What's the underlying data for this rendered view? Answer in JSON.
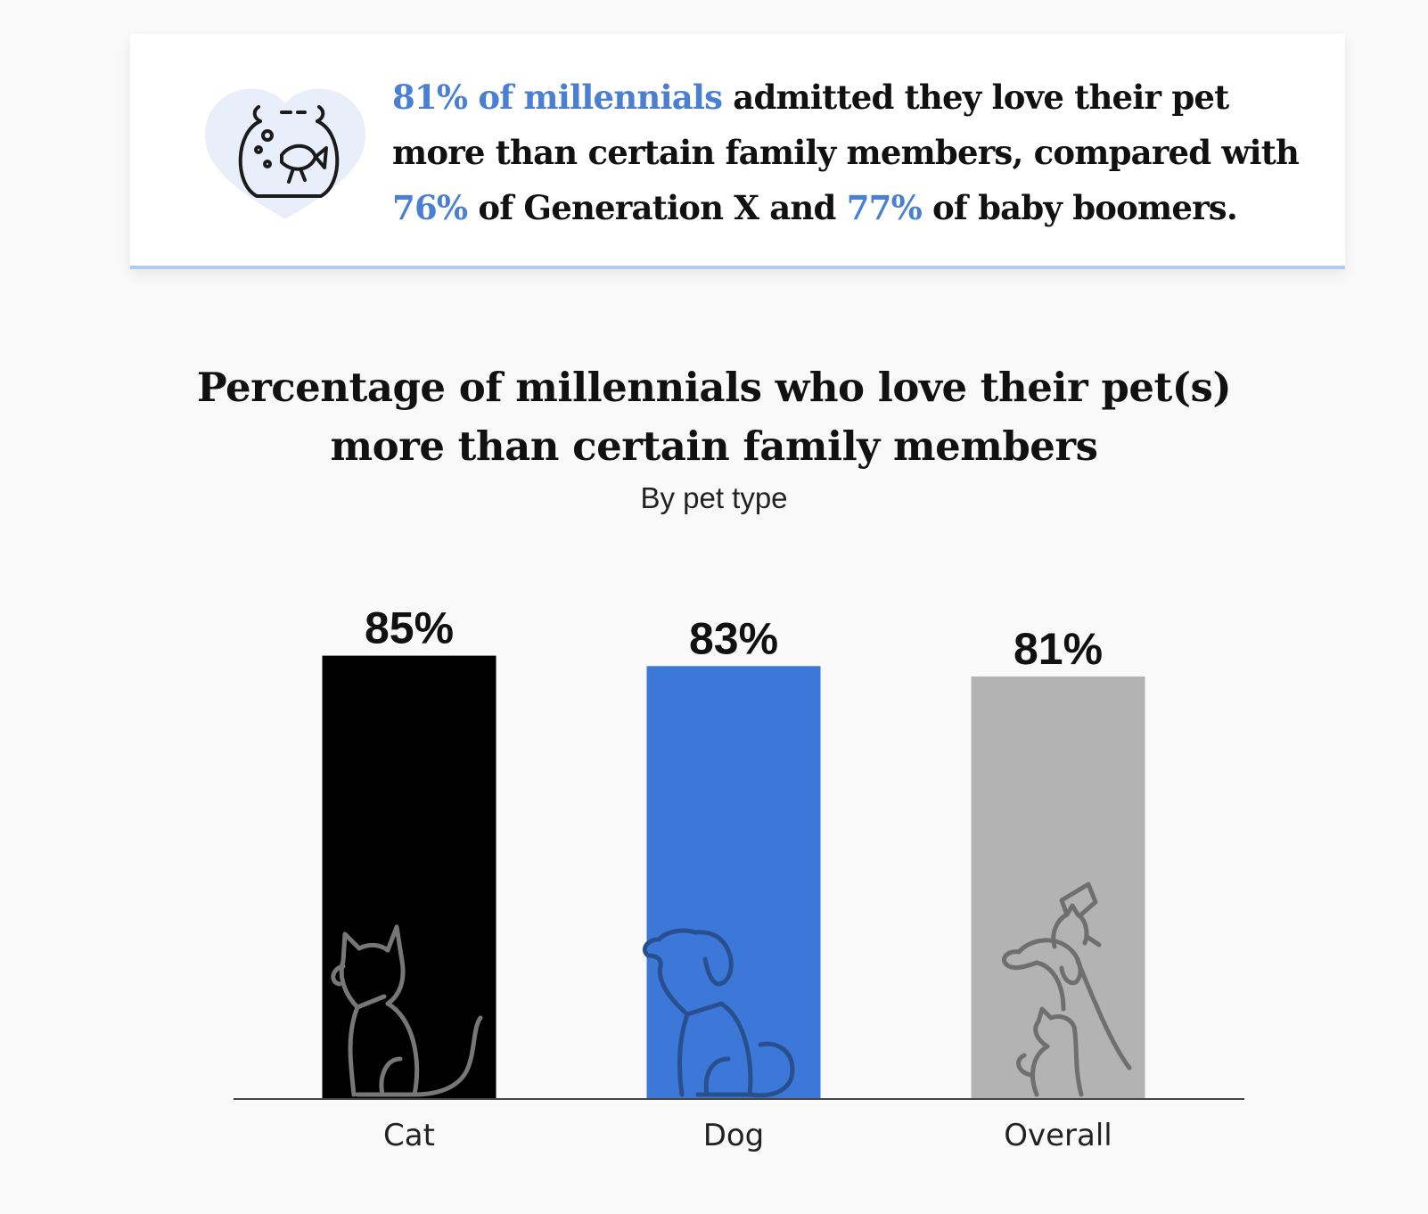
{
  "callout": {
    "icon": "fishbowl-icon",
    "segments": [
      {
        "text": "81% of millennials",
        "highlight": true
      },
      {
        "text": " admitted they love their pet",
        "highlight": false
      },
      {
        "text": "more than certain family members, compared with",
        "highlight": false,
        "newline": true
      },
      {
        "text": "76%",
        "highlight": true,
        "newline": true
      },
      {
        "text": " of Generation X and ",
        "highlight": false
      },
      {
        "text": "77%",
        "highlight": true
      },
      {
        "text": " of baby boomers.",
        "highlight": false
      }
    ],
    "highlight_color": "#4a7fd4"
  },
  "chart_data": {
    "type": "bar",
    "title_lines": [
      "Percentage of millennials who love their pet(s)",
      "more than certain family members"
    ],
    "subtitle": "By pet type",
    "categories": [
      "Cat",
      "Dog",
      "Overall"
    ],
    "values": [
      85,
      83,
      81
    ],
    "value_labels": [
      "85%",
      "83%",
      "81%"
    ],
    "colors": [
      "#000000",
      "#3c78d8",
      "#b3b3b3"
    ],
    "icons": [
      "cat-icon",
      "dog-icon",
      "pets-group-icon"
    ],
    "icon_colors": [
      "#777777",
      "#2a4f8f",
      "#6f6f6f"
    ],
    "ylim": [
      0,
      100
    ],
    "grid": false,
    "legend": "none"
  }
}
